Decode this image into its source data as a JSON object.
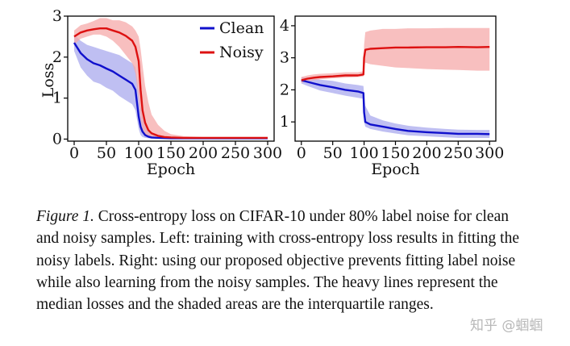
{
  "chart_data": [
    {
      "type": "line",
      "panel": "left",
      "title": "",
      "xlabel": "Epoch",
      "ylabel": "Loss",
      "xlim": [
        -10,
        310
      ],
      "ylim": [
        -0.05,
        3.0
      ],
      "xticks": [
        0,
        50,
        100,
        150,
        200,
        250,
        300
      ],
      "yticks": [
        0,
        1,
        2,
        3
      ],
      "legend": {
        "position": "top-right",
        "entries": [
          "Clean",
          "Noisy"
        ]
      },
      "series": [
        {
          "name": "Clean",
          "color": "#1010cc",
          "band_color": "#a9a9ee",
          "x": [
            0,
            10,
            20,
            30,
            40,
            50,
            60,
            70,
            80,
            90,
            95,
            100,
            103,
            106,
            110,
            115,
            120,
            130,
            150,
            200,
            250,
            300
          ],
          "median": [
            2.35,
            2.1,
            1.95,
            1.85,
            1.8,
            1.72,
            1.65,
            1.55,
            1.45,
            1.35,
            1.2,
            0.55,
            0.3,
            0.18,
            0.1,
            0.06,
            0.04,
            0.03,
            0.02,
            0.02,
            0.02,
            0.02
          ],
          "q1": [
            2.15,
            1.75,
            1.55,
            1.4,
            1.35,
            1.25,
            1.18,
            1.05,
            0.95,
            0.85,
            0.7,
            0.25,
            0.1,
            0.05,
            0.03,
            0.02,
            0.01,
            0.01,
            0.01,
            0.01,
            0.01,
            0.01
          ],
          "q3": [
            2.55,
            2.4,
            2.3,
            2.25,
            2.2,
            2.15,
            2.1,
            2.05,
            1.95,
            1.85,
            1.75,
            1.2,
            0.8,
            0.55,
            0.35,
            0.2,
            0.12,
            0.08,
            0.05,
            0.04,
            0.04,
            0.04
          ]
        },
        {
          "name": "Noisy",
          "color": "#dd1111",
          "band_color": "#f5aaaa",
          "x": [
            0,
            10,
            20,
            30,
            40,
            50,
            60,
            70,
            80,
            90,
            95,
            100,
            103,
            106,
            110,
            115,
            120,
            130,
            140,
            150,
            170,
            200,
            250,
            300
          ],
          "median": [
            2.5,
            2.6,
            2.65,
            2.68,
            2.7,
            2.7,
            2.65,
            2.6,
            2.52,
            2.4,
            2.25,
            1.9,
            1.2,
            0.7,
            0.4,
            0.22,
            0.14,
            0.08,
            0.05,
            0.04,
            0.03,
            0.03,
            0.03,
            0.03
          ],
          "q1": [
            2.3,
            2.45,
            2.5,
            2.55,
            2.55,
            2.5,
            2.4,
            2.25,
            2.05,
            1.85,
            1.6,
            1.0,
            0.5,
            0.25,
            0.12,
            0.07,
            0.04,
            0.03,
            0.02,
            0.02,
            0.02,
            0.02,
            0.02,
            0.02
          ],
          "q3": [
            2.65,
            2.78,
            2.82,
            2.88,
            2.95,
            2.95,
            2.9,
            2.9,
            2.85,
            2.75,
            2.65,
            2.5,
            2.2,
            1.8,
            1.3,
            0.9,
            0.6,
            0.35,
            0.2,
            0.12,
            0.07,
            0.05,
            0.05,
            0.05
          ]
        }
      ]
    },
    {
      "type": "line",
      "panel": "right",
      "title": "",
      "xlabel": "Epoch",
      "ylabel": "",
      "xlim": [
        -10,
        310
      ],
      "ylim": [
        0.4,
        4.3
      ],
      "xticks": [
        0,
        50,
        100,
        150,
        200,
        250,
        300
      ],
      "yticks": [
        1,
        2,
        3,
        4
      ],
      "series": [
        {
          "name": "Clean",
          "color": "#1010cc",
          "band_color": "#a9a9ee",
          "x": [
            0,
            10,
            20,
            30,
            50,
            70,
            90,
            99,
            100,
            102,
            110,
            130,
            150,
            170,
            200,
            230,
            250,
            280,
            300
          ],
          "median": [
            2.3,
            2.25,
            2.2,
            2.15,
            2.08,
            2.0,
            1.95,
            1.9,
            1.3,
            1.0,
            0.92,
            0.85,
            0.78,
            0.72,
            0.68,
            0.65,
            0.63,
            0.63,
            0.62
          ],
          "q1": [
            2.2,
            2.12,
            2.05,
            1.98,
            1.9,
            1.82,
            1.75,
            1.72,
            1.0,
            0.85,
            0.78,
            0.7,
            0.64,
            0.58,
            0.55,
            0.52,
            0.5,
            0.5,
            0.5
          ],
          "q3": [
            2.4,
            2.38,
            2.35,
            2.32,
            2.28,
            2.2,
            2.15,
            2.12,
            1.85,
            1.5,
            1.2,
            1.05,
            0.95,
            0.88,
            0.82,
            0.78,
            0.76,
            0.75,
            0.75
          ]
        },
        {
          "name": "Noisy",
          "color": "#dd1111",
          "band_color": "#f5aaaa",
          "x": [
            0,
            10,
            20,
            30,
            50,
            70,
            90,
            99,
            100,
            102,
            110,
            130,
            150,
            170,
            200,
            230,
            250,
            280,
            300
          ],
          "median": [
            2.3,
            2.35,
            2.38,
            2.4,
            2.42,
            2.45,
            2.45,
            2.48,
            3.0,
            3.25,
            3.28,
            3.3,
            3.32,
            3.32,
            3.33,
            3.33,
            3.34,
            3.33,
            3.34
          ],
          "q1": [
            2.22,
            2.28,
            2.3,
            2.33,
            2.36,
            2.38,
            2.4,
            2.42,
            2.7,
            2.85,
            2.8,
            2.75,
            2.7,
            2.68,
            2.65,
            2.63,
            2.62,
            2.6,
            2.6
          ],
          "q3": [
            2.4,
            2.45,
            2.48,
            2.5,
            2.52,
            2.55,
            2.55,
            2.58,
            3.4,
            3.8,
            3.85,
            3.9,
            3.9,
            3.92,
            3.92,
            3.93,
            3.93,
            3.93,
            3.93
          ]
        }
      ]
    }
  ],
  "caption": {
    "label": "Figure 1.",
    "text": "Cross-entropy loss on CIFAR-10 under 80% label noise for clean and noisy samples. Left: training with cross-entropy loss results in fitting the noisy labels. Right: using our proposed objective prevents fitting label noise while also learning from the noisy samples. The heavy lines represent the median losses and the shaded areas are the interquartile ranges."
  },
  "watermark": "知乎 @蝈蝈"
}
